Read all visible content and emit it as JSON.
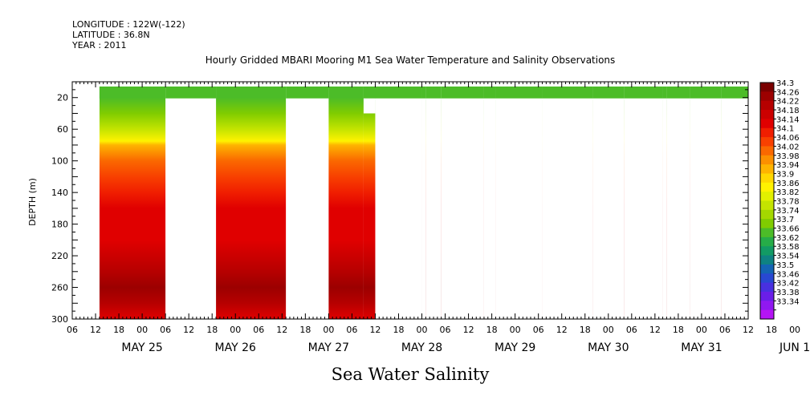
{
  "header": {
    "longitude": "LONGITUDE : 122W(-122)",
    "latitude": "LATITUDE : 36.8N",
    "year": "YEAR : 2011"
  },
  "title": "Hourly Gridded MBARI Mooring M1 Sea Water Temperature and Salinity Observations",
  "bottom_title": "Sea Water Salinity",
  "chart_data": {
    "type": "heatmap",
    "title": "Hourly Gridded MBARI Mooring M1 Sea Water Temperature and Salinity Observations",
    "subtitle": "Sea Water Salinity",
    "xlabel": "",
    "ylabel": "DEPTH (m)",
    "y_ticks": [
      20,
      60,
      100,
      140,
      180,
      220,
      260,
      300
    ],
    "ylim": [
      300,
      0
    ],
    "x_hour_ticks": [
      "06",
      "12",
      "18",
      "00",
      "06",
      "12",
      "18",
      "00",
      "06",
      "12",
      "18",
      "00",
      "06",
      "12",
      "18",
      "00",
      "06",
      "12",
      "18",
      "00",
      "06",
      "12",
      "18",
      "00",
      "06",
      "12",
      "18",
      "00",
      "06",
      "12",
      "18",
      "00",
      "06"
    ],
    "x_day_labels": [
      "MAY 25",
      "MAY 26",
      "MAY 27",
      "MAY 28",
      "MAY 29",
      "MAY 30",
      "MAY 31",
      "JUN  1"
    ],
    "xlim_hours": [
      0,
      174
    ],
    "colorbar": {
      "levels": [
        "34.3",
        "34.26",
        "34.22",
        "34.18",
        "34.14",
        "34.1",
        "34.06",
        "34.02",
        "33.98",
        "33.94",
        "33.9",
        "33.86",
        "33.82",
        "33.78",
        "33.74",
        "33.7",
        "33.66",
        "33.62",
        "33.58",
        "33.54",
        "33.5",
        "33.46",
        "33.42",
        "33.38",
        "33.34"
      ],
      "colors": [
        "#7a0000",
        "#9c0000",
        "#b60000",
        "#cc0000",
        "#e00000",
        "#f01e00",
        "#f84000",
        "#fa6800",
        "#fc9000",
        "#feb400",
        "#ffd800",
        "#fff200",
        "#e2f000",
        "#c4e400",
        "#a4d800",
        "#80cc00",
        "#4cbc28",
        "#26ac48",
        "#129a64",
        "#0e8282",
        "#1464b4",
        "#2848d2",
        "#4830e0",
        "#6a1ee8",
        "#9018f0",
        "#b414f4"
      ]
    },
    "profile_depths": [
      7,
      20,
      40,
      60,
      75,
      80,
      100,
      120,
      140,
      160,
      180,
      200,
      220,
      240,
      260,
      280,
      300
    ],
    "profile_values": [
      33.66,
      33.66,
      33.7,
      33.8,
      33.86,
      33.94,
      34.02,
      34.08,
      34.13,
      34.14,
      34.14,
      34.16,
      34.19,
      34.23,
      34.26,
      34.22,
      34.17
    ],
    "data_segments": [
      {
        "start_hour": 7,
        "end_hour": 24,
        "top_depth": 6
      },
      {
        "start_hour": 24,
        "end_hour": 37,
        "top_depth": 6
      },
      {
        "start_hour": 37,
        "end_hour": 55,
        "top_depth": 6
      },
      {
        "start_hour": 55,
        "end_hour": 66,
        "top_depth": 6
      },
      {
        "start_hour": 66,
        "end_hour": 75,
        "top_depth": 6
      },
      {
        "start_hour": 75,
        "end_hour": 90,
        "top_depth": 6
      },
      {
        "start_hour": 90,
        "end_hour": 91,
        "top_depth": 6
      },
      {
        "start_hour": 91,
        "end_hour": 95,
        "top_depth": 6
      },
      {
        "start_hour": 95,
        "end_hour": 106,
        "top_depth": 6
      },
      {
        "start_hour": 106,
        "end_hour": 109,
        "top_depth": 6
      },
      {
        "start_hour": 109,
        "end_hour": 121,
        "top_depth": 6
      },
      {
        "start_hour": 121,
        "end_hour": 134,
        "top_depth": 6
      },
      {
        "start_hour": 134,
        "end_hour": 142,
        "top_depth": 6
      },
      {
        "start_hour": 142,
        "end_hour": 152,
        "top_depth": 6
      },
      {
        "start_hour": 152,
        "end_hour": 153,
        "top_depth": 6
      },
      {
        "start_hour": 153,
        "end_hour": 159,
        "top_depth": 6
      },
      {
        "start_hour": 159,
        "end_hour": 167,
        "top_depth": 6
      },
      {
        "start_hour": 167,
        "end_hour": 174,
        "top_depth": 6
      }
    ],
    "blank_regions": [
      {
        "start_hour": 0,
        "end_hour": 7,
        "top_depth": 21,
        "bottom_depth": 300
      },
      {
        "start_hour": 24,
        "end_hour": 37,
        "top_depth": 21,
        "bottom_depth": 300
      },
      {
        "start_hour": 55,
        "end_hour": 66,
        "top_depth": 21,
        "bottom_depth": 300
      },
      {
        "start_hour": 75,
        "end_hour": 78,
        "top_depth": 21,
        "bottom_depth": 40
      },
      {
        "start_hour": 78,
        "end_hour": 90,
        "top_depth": 21,
        "bottom_depth": 300
      },
      {
        "start_hour": 90,
        "end_hour": 91,
        "top_depth": 21,
        "bottom_depth": 300
      },
      {
        "start_hour": 91,
        "end_hour": 95,
        "top_depth": 21,
        "bottom_depth": 300
      },
      {
        "start_hour": 95,
        "end_hour": 106,
        "top_depth": 21,
        "bottom_depth": 300
      },
      {
        "start_hour": 106,
        "end_hour": 109,
        "top_depth": 21,
        "bottom_depth": 300
      },
      {
        "start_hour": 109,
        "end_hour": 121,
        "top_depth": 21,
        "bottom_depth": 300
      },
      {
        "start_hour": 121,
        "end_hour": 134,
        "top_depth": 21,
        "bottom_depth": 300
      },
      {
        "start_hour": 134,
        "end_hour": 142,
        "top_depth": 21,
        "bottom_depth": 300
      },
      {
        "start_hour": 142,
        "end_hour": 152,
        "top_depth": 21,
        "bottom_depth": 300
      },
      {
        "start_hour": 152,
        "end_hour": 153,
        "top_depth": 21,
        "bottom_depth": 300
      },
      {
        "start_hour": 153,
        "end_hour": 159,
        "top_depth": 21,
        "bottom_depth": 300
      },
      {
        "start_hour": 159,
        "end_hour": 167,
        "top_depth": 21,
        "bottom_depth": 300
      },
      {
        "start_hour": 167,
        "end_hour": 174,
        "top_depth": 21,
        "bottom_depth": 300
      }
    ],
    "grid": false,
    "legend_placement": "right colorbar"
  }
}
